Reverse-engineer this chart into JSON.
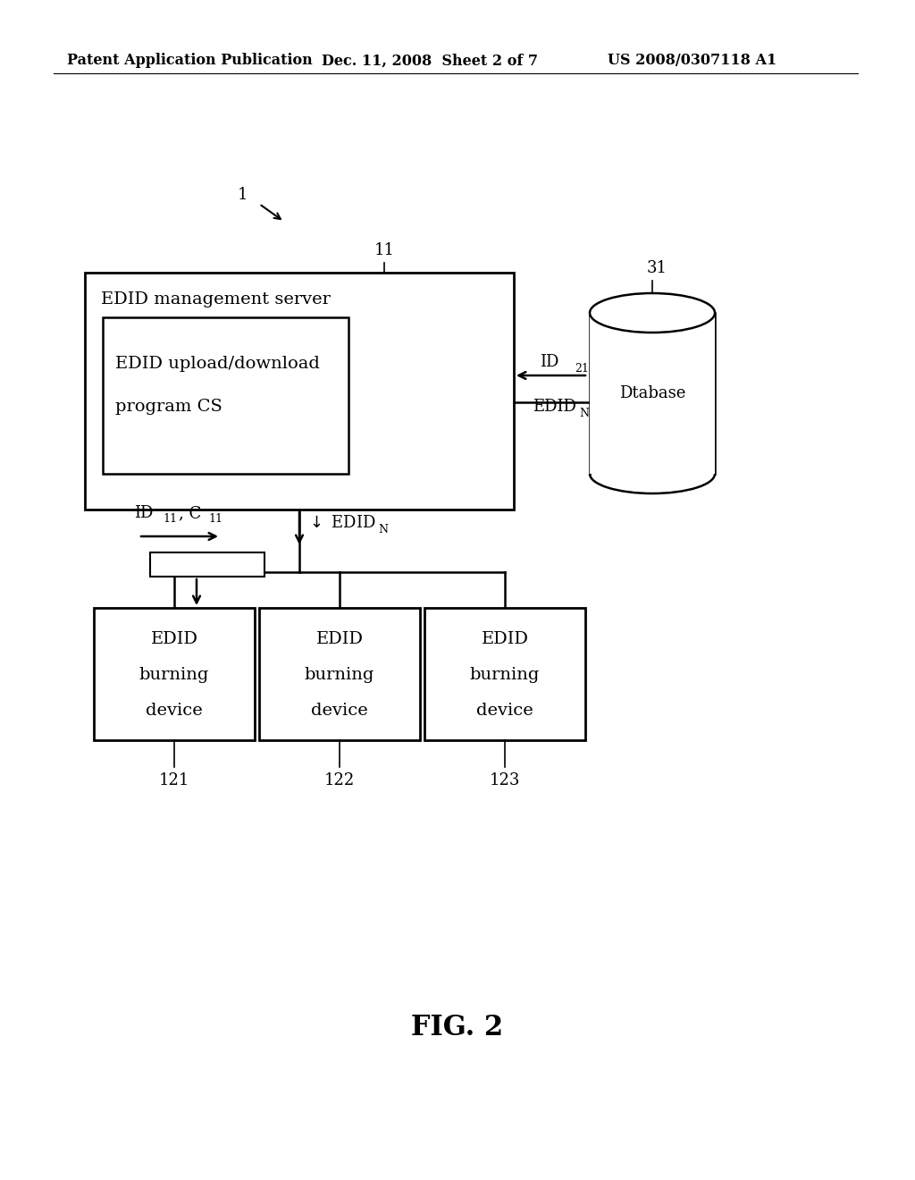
{
  "header_left": "Patent Application Publication",
  "header_mid": "Dec. 11, 2008  Sheet 2 of 7",
  "header_right": "US 2008/0307118 A1",
  "fig_label": "FIG. 2",
  "label_1": "1",
  "label_11": "11",
  "label_31": "31",
  "label_121": "121",
  "label_122": "122",
  "label_123": "123",
  "server_title": "EDID management server",
  "inner_title_line1": "EDID upload/download",
  "inner_title_line2": "program CS",
  "database_label": "Dtabase",
  "bg_color": "#ffffff",
  "line_color": "#000000",
  "text_color": "#000000"
}
